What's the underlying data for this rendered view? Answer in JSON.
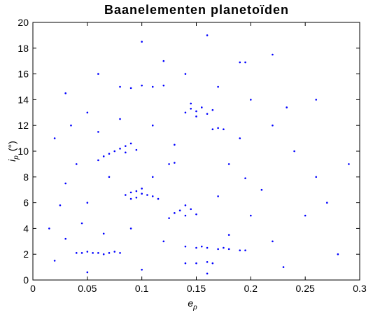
{
  "chart_data": {
    "type": "scatter",
    "title": "Baanelementen planetoïden",
    "xlabel": "e",
    "xlabel_subscript": "p",
    "ylabel": "i",
    "ylabel_subscript": "p",
    "ylabel_unit": "(°)",
    "xlim": [
      0,
      0.3
    ],
    "xticks": [
      0,
      0.05,
      0.1,
      0.15,
      0.2,
      0.25,
      0.3
    ],
    "ylim": [
      0,
      20
    ],
    "yticks": [
      0,
      2,
      4,
      6,
      8,
      10,
      12,
      14,
      16,
      18,
      20
    ],
    "series": [
      {
        "color": "#0000ff",
        "x": [
          0.04,
          0.045,
          0.05,
          0.055,
          0.06,
          0.065,
          0.07,
          0.075,
          0.08,
          0.14,
          0.15,
          0.16,
          0.17,
          0.18,
          0.19,
          0.195,
          0.155,
          0.175,
          0.14,
          0.15,
          0.16,
          0.165,
          0.085,
          0.09,
          0.095,
          0.1,
          0.105,
          0.11,
          0.095,
          0.1,
          0.115,
          0.09,
          0.13,
          0.135,
          0.14,
          0.145,
          0.15,
          0.14,
          0.125,
          0.07,
          0.075,
          0.08,
          0.085,
          0.09,
          0.095,
          0.065,
          0.06,
          0.085,
          0.14,
          0.145,
          0.15,
          0.155,
          0.16,
          0.15,
          0.145,
          0.165,
          0.08,
          0.09,
          0.1,
          0.11,
          0.12,
          0.165,
          0.17,
          0.175,
          0.13,
          0.125,
          0.195,
          0.19,
          0.195,
          0.045,
          0.065,
          0.035,
          0.233,
          0.05,
          0.02,
          0.03,
          0.025,
          0.03,
          0.04,
          0.02,
          0.05,
          0.06,
          0.1,
          0.12,
          0.14,
          0.17,
          0.2,
          0.22,
          0.24,
          0.26,
          0.25,
          0.22,
          0.28,
          0.27,
          0.29,
          0.21,
          0.18,
          0.11,
          0.07,
          0.05,
          0.12,
          0.09,
          0.2,
          0.17,
          0.23,
          0.11,
          0.18,
          0.06,
          0.08,
          0.13,
          0.19,
          0.1,
          0.16,
          0.26,
          0.015,
          0.03,
          0.16,
          0.22
        ],
        "y": [
          2.1,
          2.1,
          2.2,
          2.1,
          2.1,
          2.0,
          2.1,
          2.2,
          2.1,
          2.6,
          2.5,
          2.5,
          2.4,
          2.4,
          2.3,
          2.3,
          2.6,
          2.5,
          1.3,
          1.3,
          1.4,
          1.3,
          6.6,
          6.8,
          6.9,
          6.7,
          6.6,
          6.5,
          6.4,
          7.1,
          6.3,
          6.3,
          5.2,
          5.4,
          5.0,
          5.5,
          5.1,
          5.8,
          4.8,
          9.8,
          10.0,
          10.2,
          10.4,
          10.6,
          10.1,
          9.6,
          9.3,
          9.9,
          13.0,
          13.3,
          13.1,
          13.4,
          12.9,
          12.7,
          13.7,
          13.2,
          15.0,
          14.9,
          15.1,
          15.0,
          15.1,
          11.7,
          11.8,
          11.7,
          9.1,
          9.0,
          7.9,
          16.9,
          16.9,
          4.4,
          3.6,
          12.0,
          13.4,
          0.6,
          1.5,
          3.2,
          5.8,
          7.5,
          9,
          11,
          13,
          16,
          18.5,
          17,
          16,
          15,
          14,
          12,
          10,
          8,
          5,
          3,
          2,
          6,
          9,
          7,
          9,
          8,
          8,
          6,
          3,
          4,
          5,
          6.5,
          1,
          12,
          3.5,
          11.5,
          12.5,
          10.5,
          11,
          0.8,
          0.5,
          14,
          4,
          14.5,
          19,
          17.5
        ]
      }
    ]
  }
}
